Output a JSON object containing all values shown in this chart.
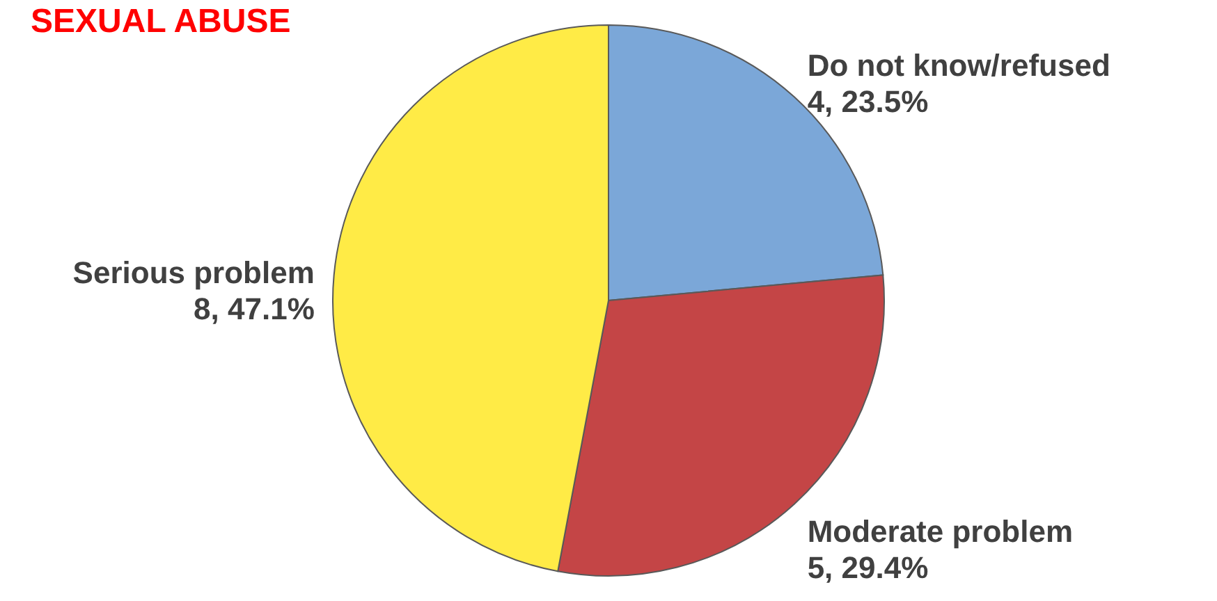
{
  "chart_data": {
    "type": "pie",
    "title": "SEXUAL ABUSE",
    "categories": [
      "Do not know/refused",
      "Moderate problem",
      "Serious problem"
    ],
    "values": [
      4,
      5,
      8
    ],
    "colors": [
      "#7ba7d8",
      "#c44546",
      "#ffeb46"
    ],
    "value_labels": [
      "4, 23.5%",
      "5, 29.4%",
      "8, 47.1%"
    ]
  }
}
